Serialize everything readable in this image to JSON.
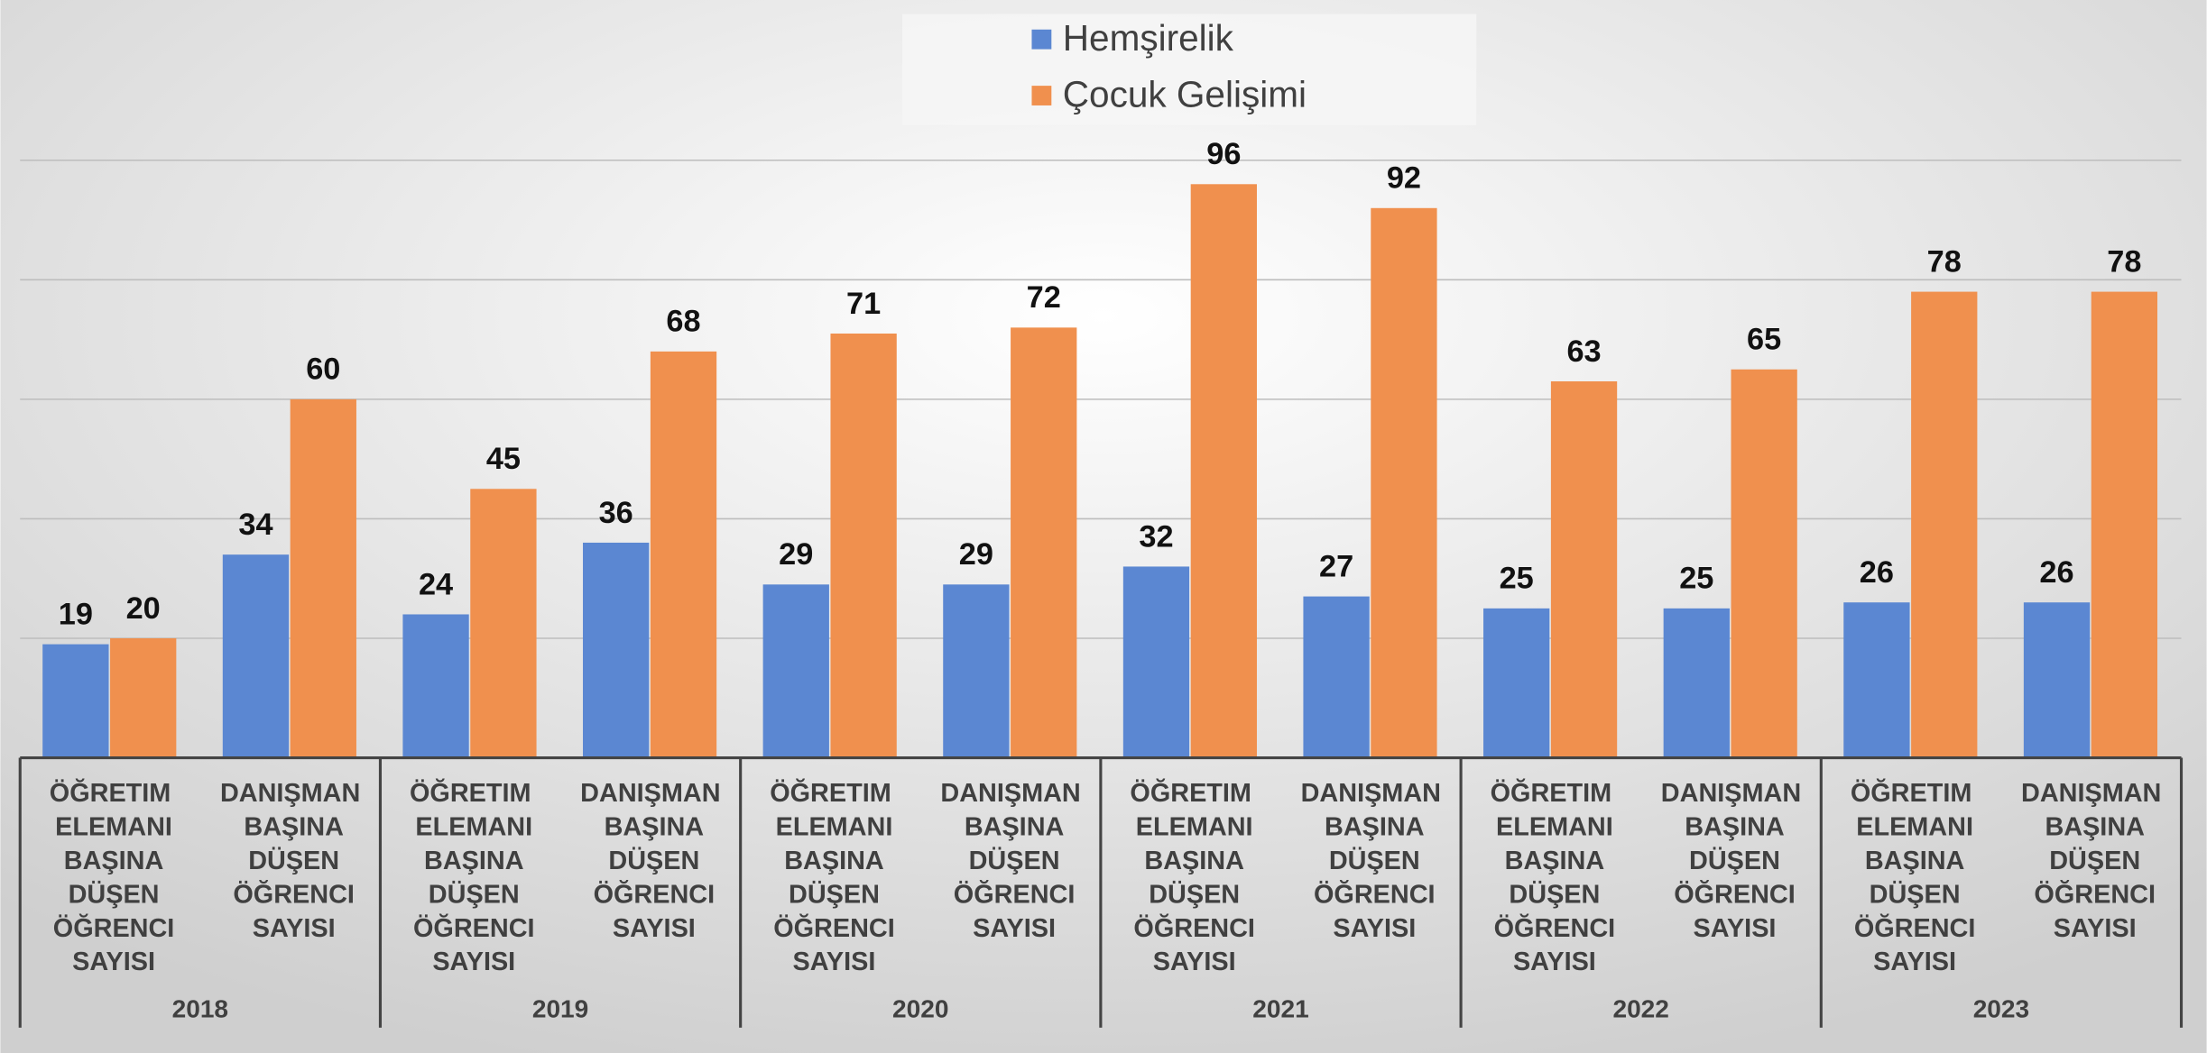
{
  "chart_data": {
    "type": "bar",
    "groups": [
      "2018",
      "2019",
      "2020",
      "2021",
      "2022",
      "2023"
    ],
    "categories": [
      "ÖĞRETIM ELEMANI BAŞINA DÜŞEN ÖĞRENCI SAYISI",
      "DANIŞMAN BAŞINA DÜŞEN ÖĞRENCI SAYISI",
      "ÖĞRETIM ELEMANI BAŞINA DÜŞEN ÖĞRENCI SAYISI",
      "DANIŞMAN BAŞINA DÜŞEN ÖĞRENCI SAYISI",
      "ÖĞRETIM ELEMANI BAŞINA DÜŞEN ÖĞRENCI SAYISI",
      "DANIŞMAN BAŞINA DÜŞEN ÖĞRENCI SAYISI",
      "ÖĞRETIM ELEMANI BAŞINA DÜŞEN ÖĞRENCI SAYISI",
      "DANIŞMAN BAŞINA DÜŞEN ÖĞRENCI SAYISI",
      "ÖĞRETIM ELEMANI BAŞINA DÜŞEN ÖĞRENCI SAYISI",
      "DANIŞMAN BAŞINA DÜŞEN ÖĞRENCI SAYISI",
      "ÖĞRETIM ELEMANI BAŞINA DÜŞEN ÖĞRENCI SAYISI",
      "DANIŞMAN BAŞINA DÜŞEN ÖĞRENCI SAYISI"
    ],
    "series": [
      {
        "name": "Hemşirelik",
        "color": "#5b87d2",
        "values": [
          19,
          34,
          24,
          36,
          29,
          29,
          32,
          27,
          25,
          25,
          26,
          26
        ]
      },
      {
        "name": "Çocuk Gelişimi",
        "color": "#f0904e",
        "values": [
          20,
          60,
          45,
          68,
          71,
          72,
          96,
          92,
          63,
          65,
          78,
          78
        ]
      }
    ],
    "ylim": [
      0,
      100
    ],
    "yticks": [
      0,
      20,
      40,
      60,
      80,
      100
    ],
    "grid": true,
    "legend": "top"
  }
}
